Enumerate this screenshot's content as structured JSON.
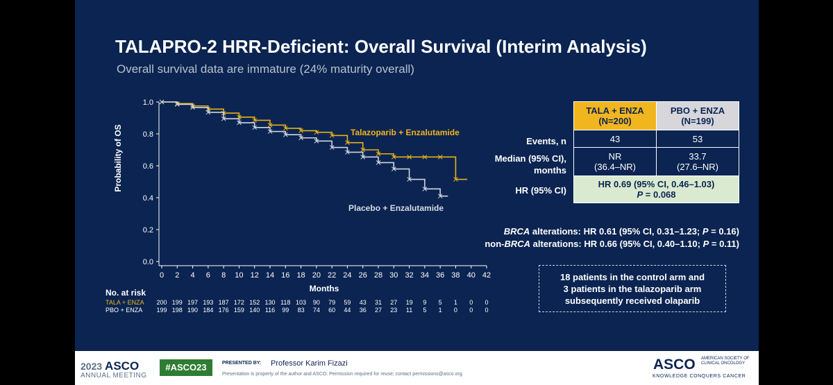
{
  "slide": {
    "title": "TALAPRO-2 HRR-Deficient: Overall Survival (Interim Analysis)",
    "subtitle": "Overall survival data are immature (24% maturity overall)"
  },
  "chart_data": {
    "type": "line",
    "title": "",
    "xlabel": "Months",
    "ylabel": "Probability of OS",
    "xlim": [
      0,
      42
    ],
    "ylim": [
      0,
      1
    ],
    "x_ticks": [
      0,
      2,
      4,
      6,
      8,
      10,
      12,
      14,
      16,
      18,
      20,
      22,
      24,
      26,
      28,
      30,
      32,
      34,
      36,
      38,
      40,
      42
    ],
    "y_ticks": [
      0.0,
      0.2,
      0.4,
      0.6,
      0.8,
      1.0
    ],
    "y_tick_labels": [
      "0.0",
      "0.2",
      "0.4",
      "0.6",
      "0.8",
      "1.0"
    ],
    "series": [
      {
        "name": "Talazoparib + Enzalutamide",
        "color": "#e8b21a",
        "x": [
          0,
          2,
          4,
          6,
          8,
          10,
          12,
          14,
          16,
          18,
          20,
          22,
          24,
          26,
          28,
          30,
          32,
          34,
          36,
          38
        ],
        "y": [
          1.0,
          0.99,
          0.975,
          0.955,
          0.93,
          0.905,
          0.885,
          0.855,
          0.835,
          0.82,
          0.81,
          0.79,
          0.745,
          0.7,
          0.675,
          0.655,
          0.655,
          0.655,
          0.655,
          0.515
        ]
      },
      {
        "name": "Placebo + Enzalutamide",
        "color": "#d0d6df",
        "x": [
          0,
          2,
          4,
          6,
          8,
          10,
          12,
          14,
          16,
          18,
          20,
          22,
          24,
          26,
          28,
          30,
          32,
          34,
          36
        ],
        "y": [
          1.0,
          0.985,
          0.965,
          0.935,
          0.895,
          0.87,
          0.84,
          0.815,
          0.795,
          0.775,
          0.755,
          0.715,
          0.685,
          0.655,
          0.62,
          0.58,
          0.515,
          0.455,
          0.41
        ]
      }
    ],
    "annotations": [
      {
        "text": "Talazoparib + Enzalutamide"
      },
      {
        "text": "Placebo + Enzalutamide"
      }
    ],
    "risk_table": {
      "header": "No. at risk",
      "rows": [
        {
          "label": "TALA + ENZA",
          "color": "#e8b21a",
          "values": [
            "200",
            "199",
            "197",
            "193",
            "187",
            "172",
            "152",
            "130",
            "118",
            "103",
            "90",
            "79",
            "59",
            "43",
            "31",
            "27",
            "19",
            "9",
            "5",
            "1",
            "0",
            "0"
          ]
        },
        {
          "label": "PBO + ENZA",
          "color": "#ffffff",
          "values": [
            "199",
            "198",
            "190",
            "184",
            "176",
            "159",
            "140",
            "116",
            "99",
            "83",
            "74",
            "60",
            "44",
            "36",
            "27",
            "23",
            "11",
            "5",
            "1",
            "0",
            "0",
            "0"
          ]
        }
      ]
    }
  },
  "table": {
    "col1_header_line1": "TALA + ENZA",
    "col1_header_line2": "(N=200)",
    "col2_header_line1": "PBO + ENZA",
    "col2_header_line2": "(N=199)",
    "events_label": "Events, n",
    "events_tala": "43",
    "events_pbo": "53",
    "median_label_line1": "Median (95% CI),",
    "median_label_line2": "months",
    "median_tala_line1": "NR",
    "median_tala_line2": "(36.4–NR)",
    "median_pbo_line1": "33.7",
    "median_pbo_line2": "(27.6–NR)",
    "hr_label": "HR (95% CI)",
    "hr_value_line1": "HR 0.69 (95% CI, 0.46–1.03)",
    "hr_value_p_label": "P",
    "hr_value_p": " = 0.068",
    "colors": {
      "tala_header": "#f0b51f",
      "pbo_header": "#d6d6db",
      "hr_box": "#d9ead0"
    }
  },
  "notes": {
    "brca_prefix": "BRCA",
    "brca_text": " alterations: HR 0.61 (95% CI, 0.31–1.23; ",
    "brca_p": "P",
    "brca_end": " = 0.16)",
    "nonbrca_prefix": "non-",
    "nonbrca_italic": "BRCA",
    "nonbrca_text": " alterations: HR 0.66 (95% CI, 0.40–1.10; ",
    "nonbrca_p": "P",
    "nonbrca_end": " = 0.11)"
  },
  "callout": {
    "line1": "18 patients in the control arm and",
    "line2": "3 patients in the talazoparib arm",
    "line3": "subsequently received olaparib"
  },
  "footer": {
    "year": "2023",
    "asco": "ASCO",
    "annual": "ANNUAL MEETING",
    "hashtag": "#ASCO23",
    "presented_by": "PRESENTED BY:",
    "presenter": "Professor Karim Fizazi",
    "property": "Presentation is property of the author and ASCO. Permission required for reuse; contact permissions@asco.org.",
    "logo": "ASCO",
    "society": "AMERICAN SOCIETY OF CLINICAL ONCOLOGY",
    "tagline": "KNOWLEDGE CONQUERS CANCER"
  }
}
